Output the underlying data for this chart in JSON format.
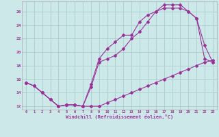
{
  "xlabel": "Windchill (Refroidissement éolien,°C)",
  "background_color": "#cce8e8",
  "line_color": "#993399",
  "grid_color": "#aacccc",
  "xlim": [
    -0.5,
    23.5
  ],
  "ylim": [
    11.5,
    27.5
  ],
  "xticks": [
    0,
    1,
    2,
    3,
    4,
    5,
    6,
    7,
    8,
    9,
    10,
    11,
    12,
    13,
    14,
    15,
    16,
    17,
    18,
    19,
    20,
    21,
    22,
    23
  ],
  "yticks": [
    12,
    14,
    16,
    18,
    20,
    22,
    24,
    26
  ],
  "series1_x": [
    0,
    1,
    2,
    3,
    4,
    5,
    6,
    7,
    8,
    9,
    10,
    11,
    12,
    13,
    14,
    15,
    16,
    17,
    18,
    19,
    20,
    21,
    22,
    23
  ],
  "series1_y": [
    15.5,
    15.0,
    14.0,
    13.0,
    12.0,
    12.2,
    12.2,
    12.0,
    14.8,
    18.5,
    19.0,
    19.5,
    20.5,
    22.0,
    23.0,
    24.5,
    26.0,
    26.5,
    26.5,
    26.5,
    26.0,
    25.0,
    19.0,
    18.5
  ],
  "series2_x": [
    0,
    1,
    2,
    3,
    4,
    5,
    6,
    7,
    8,
    9,
    10,
    11,
    12,
    13,
    14,
    15,
    16,
    17,
    18,
    19,
    20,
    21,
    22,
    23
  ],
  "series2_y": [
    15.5,
    15.0,
    14.0,
    13.0,
    12.0,
    12.2,
    12.2,
    12.0,
    15.2,
    19.0,
    20.5,
    21.5,
    22.5,
    22.5,
    24.5,
    25.5,
    26.0,
    27.0,
    27.0,
    27.0,
    26.0,
    25.0,
    21.0,
    18.5
  ],
  "series3_x": [
    0,
    1,
    2,
    3,
    4,
    5,
    6,
    7,
    8,
    9,
    10,
    11,
    12,
    13,
    14,
    15,
    16,
    17,
    18,
    19,
    20,
    21,
    22,
    23
  ],
  "series3_y": [
    15.5,
    15.0,
    14.0,
    13.0,
    12.0,
    12.2,
    12.2,
    12.0,
    12.0,
    12.0,
    12.5,
    13.0,
    13.5,
    14.0,
    14.5,
    15.0,
    15.5,
    16.0,
    16.5,
    17.0,
    17.5,
    18.0,
    18.5,
    18.8
  ]
}
